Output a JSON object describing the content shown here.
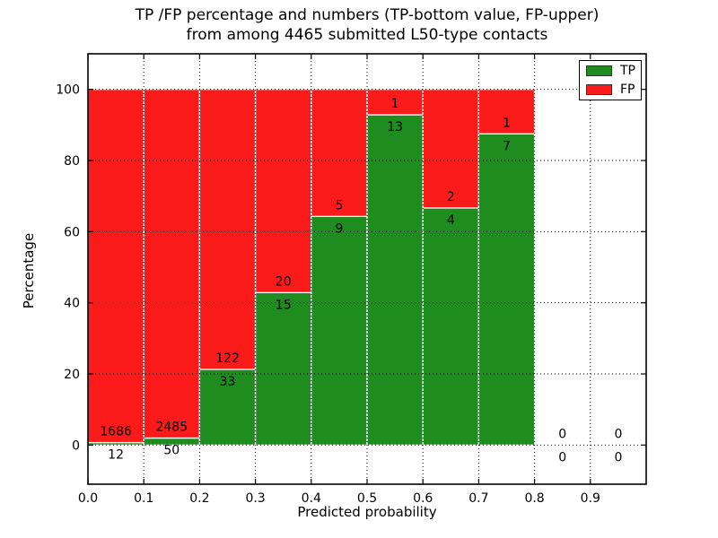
{
  "title": {
    "line1": "TP /FP percentage and numbers (TP-bottom value, FP-upper)",
    "line2": "from among 4465 submitted L50-type contacts"
  },
  "axes": {
    "xlabel": "Predicted probability",
    "ylabel": "Percentage"
  },
  "legend": {
    "position": "upper right",
    "items": [
      {
        "label": "TP",
        "color": "#1e8c1e"
      },
      {
        "label": "FP",
        "color": "#fb1b1b"
      }
    ]
  },
  "chart_data": {
    "type": "bar",
    "stacked": true,
    "normalized": "each bin scaled to 100%, labels show raw counts (TP bottom, FP upper)",
    "title": "TP /FP percentage and numbers (TP-bottom value, FP-upper) from among 4465 submitted L50-type contacts",
    "xlabel": "Predicted probability",
    "ylabel": "Percentage",
    "total_contacts": 4465,
    "xlim": [
      0.0,
      1.0
    ],
    "ylim": [
      -11,
      110
    ],
    "xticks": [
      0.0,
      0.1,
      0.2,
      0.3,
      0.4,
      0.5,
      0.6,
      0.7,
      0.8,
      0.9
    ],
    "xtick_labels": [
      "0.0",
      "0.1",
      "0.2",
      "0.3",
      "0.4",
      "0.5",
      "0.6",
      "0.7",
      "0.8",
      "0.9"
    ],
    "yticks": [
      0,
      20,
      40,
      60,
      80,
      100
    ],
    "ytick_labels": [
      "0",
      "20",
      "40",
      "60",
      "80",
      "100"
    ],
    "grid": {
      "style": "dotted",
      "vertical": true,
      "horizontal": true,
      "color": "#000000"
    },
    "colors": {
      "tp": "#1e8c1e",
      "fp": "#fb1b1b",
      "bar_edge": "#ffffff",
      "frame": "#000000"
    },
    "series": [
      {
        "name": "TP",
        "values": [
          12,
          50,
          33,
          15,
          9,
          13,
          4,
          7,
          0,
          0
        ]
      },
      {
        "name": "FP",
        "values": [
          1686,
          2485,
          122,
          20,
          5,
          1,
          2,
          1,
          0,
          0
        ]
      }
    ],
    "bins": [
      {
        "x0": 0.0,
        "x1": 0.1,
        "tp": 12,
        "fp": 1686
      },
      {
        "x0": 0.1,
        "x1": 0.2,
        "tp": 50,
        "fp": 2485
      },
      {
        "x0": 0.2,
        "x1": 0.3,
        "tp": 33,
        "fp": 122
      },
      {
        "x0": 0.3,
        "x1": 0.4,
        "tp": 15,
        "fp": 20
      },
      {
        "x0": 0.4,
        "x1": 0.5,
        "tp": 9,
        "fp": 5
      },
      {
        "x0": 0.5,
        "x1": 0.6,
        "tp": 13,
        "fp": 1
      },
      {
        "x0": 0.6,
        "x1": 0.7,
        "tp": 4,
        "fp": 2
      },
      {
        "x0": 0.7,
        "x1": 0.8,
        "tp": 7,
        "fp": 1
      },
      {
        "x0": 0.8,
        "x1": 0.9,
        "tp": 0,
        "fp": 0
      },
      {
        "x0": 0.9,
        "x1": 1.0,
        "tp": 0,
        "fp": 0
      }
    ]
  }
}
